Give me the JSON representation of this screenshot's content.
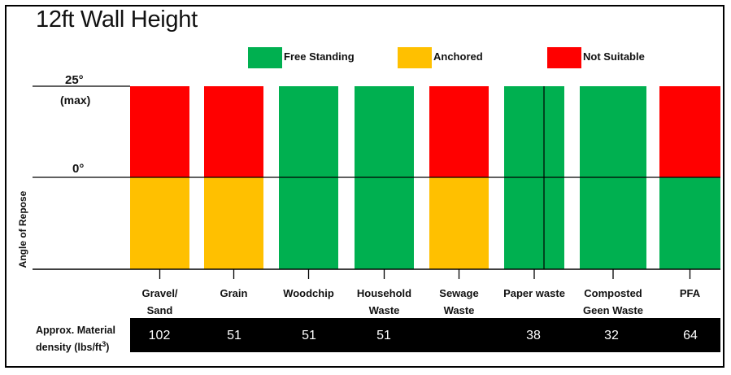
{
  "chart_data": {
    "type": "bar",
    "title": "12ft Wall Height",
    "ylabel": "Angle of Repose",
    "y_ticks": [
      {
        "label": "25°",
        "sublabel": "(max)"
      },
      {
        "label": "0°"
      }
    ],
    "legend": [
      {
        "label": "Free Standing",
        "color": "#00b050"
      },
      {
        "label": "Anchored",
        "color": "#ffc000"
      },
      {
        "label": "Not Suitable",
        "color": "#ff0000"
      }
    ],
    "categories": [
      "Gravel/\nSand",
      "Grain",
      "Woodchip",
      "Household\nWaste",
      "Sewage\nWaste",
      "Paper waste",
      "Composted\nGeen Waste",
      "PFA"
    ],
    "segments_lower_0_to_0deg": [
      "Anchored",
      "Anchored",
      "Free Standing",
      "Free Standing",
      "Anchored",
      "Free Standing",
      "Free Standing",
      "Free Standing"
    ],
    "segments_upper_0deg_to_25deg": [
      "Not Suitable",
      "Not Suitable",
      "Free Standing",
      "Free Standing",
      "Not Suitable",
      "Free Standing",
      "Free Standing",
      "Not Suitable"
    ],
    "density_label": "Approx. Material density (lbs/ft³)",
    "density_values": [
      "102",
      "51",
      "51",
      "51",
      "",
      "38",
      "32",
      "64"
    ],
    "grid": false
  }
}
